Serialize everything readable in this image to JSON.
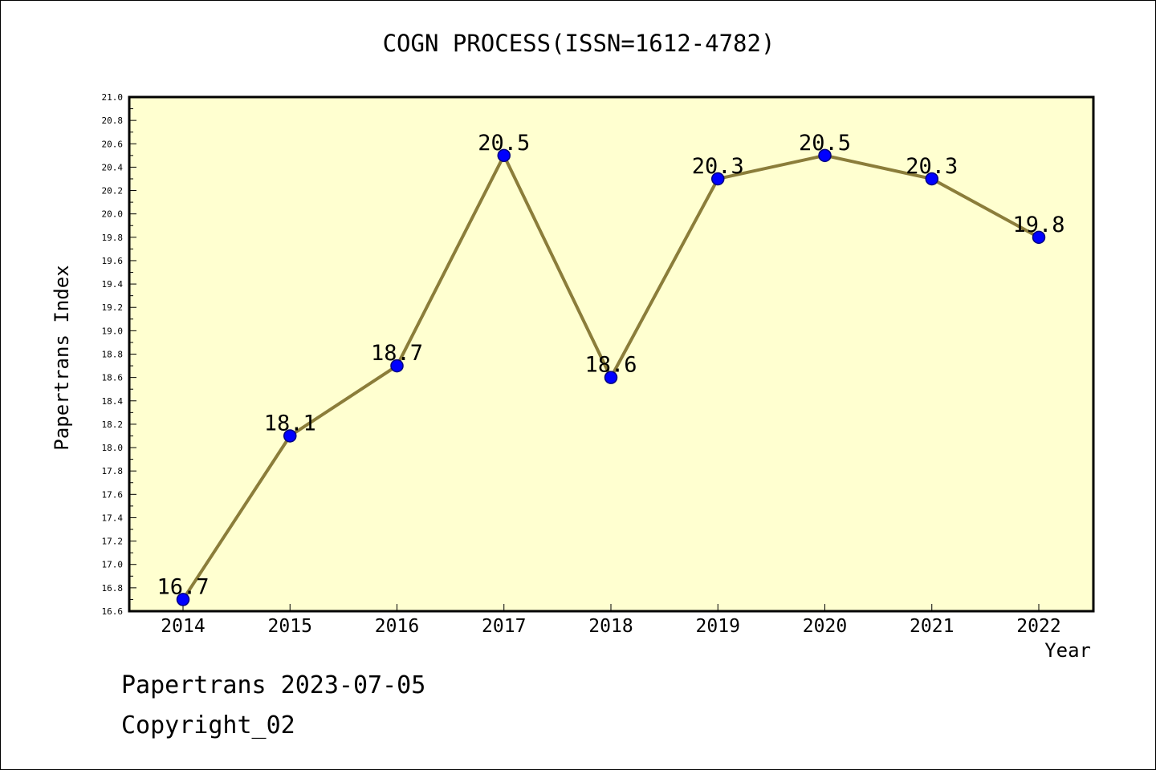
{
  "header": {
    "title": "COGN PROCESS(ISSN=1612-4782)"
  },
  "footer": {
    "date_line": "Papertrans 2023-07-05",
    "copyright_line": "Copyright_02"
  },
  "colors": {
    "plot_background": "#ffffd0",
    "line": "#8b7d3a",
    "marker": "#0000ff",
    "marker_edge": "#000080"
  },
  "chart_data": {
    "type": "line",
    "title": "COGN PROCESS(ISSN=1612-4782)",
    "xlabel": "Year",
    "ylabel": "Papertrans Index",
    "x": [
      "2014",
      "2015",
      "2016",
      "2017",
      "2018",
      "2019",
      "2020",
      "2021",
      "2022"
    ],
    "series": [
      {
        "values": [
          16.7,
          18.1,
          18.7,
          20.5,
          18.6,
          20.3,
          20.5,
          20.3,
          19.8
        ],
        "labels": [
          "16.7",
          "18.1",
          "18.7",
          "20.5",
          "18.6",
          "20.3",
          "20.5",
          "20.3",
          "19.8"
        ]
      }
    ],
    "ylim": [
      16.6,
      21.0
    ],
    "yticks": [
      "16.6",
      "16.8",
      "17.0",
      "17.2",
      "17.4",
      "17.6",
      "17.8",
      "18.0",
      "18.2",
      "18.4",
      "18.6",
      "18.8",
      "19.0",
      "19.2",
      "19.4",
      "19.6",
      "19.8",
      "20.0",
      "20.2",
      "20.4",
      "20.6",
      "20.8",
      "21.0"
    ],
    "grid": false,
    "legend": "none"
  }
}
